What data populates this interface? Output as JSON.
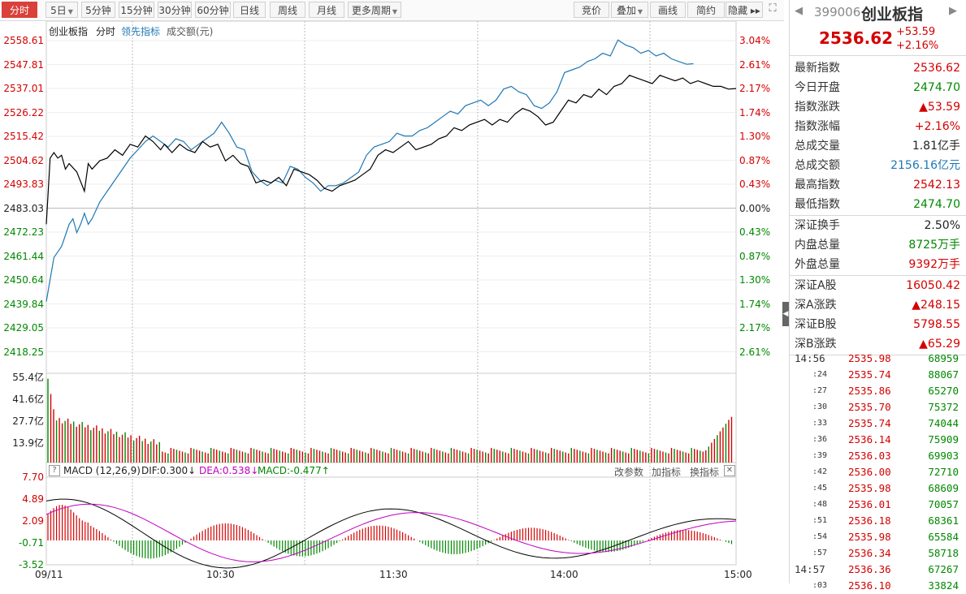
{
  "toolbar": {
    "left": [
      {
        "label": "分时",
        "active": true
      },
      {
        "label": "5日",
        "caret": true
      },
      {
        "label": "5分钟"
      },
      {
        "label": "15分钟"
      },
      {
        "label": "30分钟"
      },
      {
        "label": "60分钟"
      },
      {
        "label": "日线"
      },
      {
        "label": "周线"
      },
      {
        "label": "月线"
      },
      {
        "label": "更多周期",
        "caret": true
      }
    ],
    "right": [
      {
        "label": "竞价"
      },
      {
        "label": "叠加",
        "caret": true
      },
      {
        "label": "画线"
      },
      {
        "label": "简约"
      },
      {
        "label": "隐藏 ▸▸"
      }
    ]
  },
  "legend": {
    "name": "创业板指",
    "mode": "分时",
    "lead": "领先指标",
    "volume": "成交额(元)"
  },
  "price_axis": [
    "2558.61",
    "2547.81",
    "2537.01",
    "2526.22",
    "2515.42",
    "2504.62",
    "2493.83",
    "2483.03",
    "2472.23",
    "2461.44",
    "2450.64",
    "2439.84",
    "2429.05",
    "2418.25"
  ],
  "pct_axis": [
    "3.04%",
    "2.61%",
    "2.17%",
    "1.74%",
    "1.30%",
    "0.87%",
    "0.43%",
    "0.00%",
    "0.43%",
    "0.87%",
    "1.30%",
    "1.74%",
    "2.17%",
    "2.61%"
  ],
  "vol_axis": [
    "55.4亿",
    "41.6亿",
    "27.7亿",
    "13.9亿"
  ],
  "macd": {
    "title": "MACD (12,26,9)",
    "dif": "DIF:0.300↓",
    "dea": "DEA:0.538↓",
    "macd": "MACD:-0.477↑",
    "links": [
      "改参数",
      "加指标",
      "换指标"
    ],
    "axis": [
      "7.70",
      "4.89",
      "2.09",
      "-0.71",
      "-3.52"
    ]
  },
  "time_axis": [
    "09/11",
    "10:30",
    "11:30",
    "14:00",
    "15:00"
  ],
  "quote": {
    "code": "399006",
    "name": "创业板指",
    "price": "2536.62",
    "chg": "+53.59",
    "pct": "+2.16%",
    "stats1": [
      {
        "k": "最新指数",
        "v": "2536.62",
        "c": "red"
      },
      {
        "k": "今日开盘",
        "v": "2474.70",
        "c": "green"
      },
      {
        "k": "指数涨跌",
        "v": "▲53.59",
        "c": "red"
      },
      {
        "k": "指数涨幅",
        "v": "+2.16%",
        "c": "red"
      },
      {
        "k": "总成交量",
        "v": "1.81亿手",
        "c": "black"
      },
      {
        "k": "总成交额",
        "v": "2156.16亿元",
        "c": "blue"
      },
      {
        "k": "最高指数",
        "v": "2542.13",
        "c": "red"
      },
      {
        "k": "最低指数",
        "v": "2474.70",
        "c": "green"
      }
    ],
    "stats2": [
      {
        "k": "深证换手",
        "v": "2.50%",
        "c": "black"
      },
      {
        "k": "内盘总量",
        "v": "8725万手",
        "c": "green"
      },
      {
        "k": "外盘总量",
        "v": "9392万手",
        "c": "red"
      }
    ],
    "stats3": [
      {
        "k": "深证A股",
        "v": "16050.42",
        "c": "red"
      },
      {
        "k": "深A涨跌",
        "v": "▲248.15",
        "c": "red"
      },
      {
        "k": "深证B股",
        "v": "5798.55",
        "c": "red"
      },
      {
        "k": "深B涨跌",
        "v": "▲65.29",
        "c": "red"
      }
    ],
    "ticks": [
      {
        "t": "14:56",
        "p": "2535.98",
        "q": "68959",
        "big": true
      },
      {
        "t": ":24",
        "p": "2535.74",
        "q": "88067"
      },
      {
        "t": ":27",
        "p": "2535.86",
        "q": "65270"
      },
      {
        "t": ":30",
        "p": "2535.70",
        "q": "75372"
      },
      {
        "t": ":33",
        "p": "2535.74",
        "q": "74044"
      },
      {
        "t": ":36",
        "p": "2536.14",
        "q": "75909"
      },
      {
        "t": ":39",
        "p": "2536.03",
        "q": "69903"
      },
      {
        "t": ":42",
        "p": "2536.00",
        "q": "72710"
      },
      {
        "t": ":45",
        "p": "2535.98",
        "q": "68609"
      },
      {
        "t": ":48",
        "p": "2536.01",
        "q": "70057"
      },
      {
        "t": ":51",
        "p": "2536.18",
        "q": "68361"
      },
      {
        "t": ":54",
        "p": "2535.98",
        "q": "65584"
      },
      {
        "t": ":57",
        "p": "2536.34",
        "q": "58718"
      },
      {
        "t": "14:57",
        "p": "2536.36",
        "q": "67267",
        "big": true
      },
      {
        "t": ":03",
        "p": "2536.10",
        "q": "33824"
      }
    ]
  },
  "colors": {
    "up": "#d40000",
    "down": "#008800",
    "price": "#000000",
    "lead": "#1f78b4",
    "macd_dea": "#c000c0"
  }
}
